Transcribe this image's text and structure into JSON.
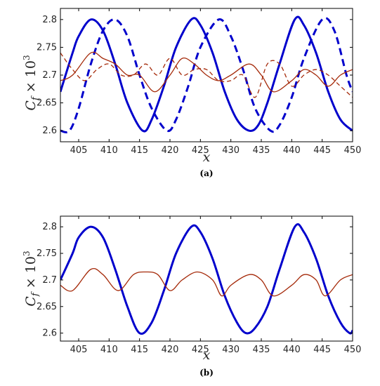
{
  "chart_data": [
    {
      "type": "line",
      "panel_label": "(a)",
      "xlabel": "x",
      "ylabel": "C_f × 10^3",
      "xlim": [
        402,
        450
      ],
      "ylim": [
        2.58,
        2.82
      ],
      "xticks": [
        405,
        410,
        415,
        420,
        425,
        430,
        435,
        440,
        445,
        450
      ],
      "yticks": [
        2.6,
        2.65,
        2.7,
        2.75,
        2.8
      ],
      "grid": false,
      "series": [
        {
          "color": "#0000cc",
          "style": "solid",
          "width": 3,
          "x": [
            402,
            404,
            405,
            407,
            409,
            411,
            413,
            415.5,
            417,
            419,
            421,
            423.5,
            425,
            427,
            429,
            431,
            433,
            434.5,
            436,
            438,
            440.5,
            442,
            444,
            446,
            448,
            450
          ],
          "y": [
            2.67,
            2.74,
            2.77,
            2.8,
            2.78,
            2.72,
            2.65,
            2.6,
            2.62,
            2.68,
            2.75,
            2.8,
            2.79,
            2.74,
            2.67,
            2.62,
            2.6,
            2.61,
            2.65,
            2.72,
            2.8,
            2.79,
            2.74,
            2.67,
            2.62,
            2.6
          ]
        },
        {
          "color": "#0000cc",
          "style": "dashed",
          "width": 3,
          "x": [
            402,
            403.5,
            405,
            407,
            409,
            411,
            413,
            415,
            417,
            419.5,
            421,
            423,
            425,
            428,
            430,
            432,
            434,
            436.5,
            438,
            440,
            442,
            445,
            447,
            449,
            450
          ],
          "y": [
            2.6,
            2.6,
            2.64,
            2.72,
            2.78,
            2.8,
            2.77,
            2.7,
            2.64,
            2.6,
            2.62,
            2.68,
            2.75,
            2.8,
            2.77,
            2.71,
            2.64,
            2.6,
            2.61,
            2.66,
            2.73,
            2.8,
            2.78,
            2.7,
            2.67
          ]
        },
        {
          "color": "#a52a0a",
          "style": "solid",
          "width": 1.3,
          "x": [
            402,
            404,
            407,
            409,
            411,
            413,
            415,
            417.5,
            420,
            422,
            424,
            426,
            428,
            430,
            433,
            435,
            437,
            440,
            442,
            444,
            446,
            448,
            450
          ],
          "y": [
            2.69,
            2.7,
            2.74,
            2.73,
            2.72,
            2.7,
            2.7,
            2.67,
            2.7,
            2.73,
            2.72,
            2.7,
            2.69,
            2.7,
            2.72,
            2.7,
            2.67,
            2.69,
            2.71,
            2.7,
            2.68,
            2.7,
            2.71
          ]
        },
        {
          "color": "#a52a0a",
          "style": "dashed",
          "width": 1.3,
          "x": [
            402,
            404,
            406,
            408,
            410,
            412,
            414,
            416,
            418,
            420,
            422,
            424,
            426,
            428,
            430,
            432,
            434,
            436,
            438,
            440,
            442,
            444,
            446,
            448,
            450
          ],
          "y": [
            2.74,
            2.71,
            2.69,
            2.71,
            2.72,
            2.7,
            2.7,
            2.72,
            2.7,
            2.73,
            2.7,
            2.71,
            2.71,
            2.69,
            2.69,
            2.7,
            2.66,
            2.72,
            2.72,
            2.68,
            2.7,
            2.71,
            2.7,
            2.68,
            2.66
          ]
        }
      ]
    },
    {
      "type": "line",
      "panel_label": "(b)",
      "xlabel": "x",
      "ylabel": "C_f × 10^3",
      "xlim": [
        402,
        450
      ],
      "ylim": [
        2.585,
        2.82
      ],
      "xticks": [
        405,
        410,
        415,
        420,
        425,
        430,
        435,
        440,
        445,
        450
      ],
      "yticks": [
        2.6,
        2.65,
        2.7,
        2.75,
        2.8
      ],
      "grid": false,
      "series": [
        {
          "color": "#0000cc",
          "style": "solid",
          "width": 3,
          "x": [
            402,
            404,
            405,
            407,
            409,
            411,
            413,
            415,
            417,
            419,
            421,
            423.5,
            425,
            427,
            429,
            431,
            432.5,
            434,
            436,
            438,
            440.5,
            442,
            444,
            446,
            448,
            449.5,
            450
          ],
          "y": [
            2.7,
            2.75,
            2.78,
            2.8,
            2.78,
            2.72,
            2.65,
            2.6,
            2.62,
            2.68,
            2.75,
            2.8,
            2.79,
            2.74,
            2.67,
            2.62,
            2.6,
            2.61,
            2.65,
            2.72,
            2.8,
            2.79,
            2.74,
            2.67,
            2.62,
            2.6,
            2.605
          ]
        },
        {
          "color": "#a52a0a",
          "style": "solid",
          "width": 1.3,
          "x": [
            402,
            404,
            407,
            409,
            411.5,
            414,
            416,
            418,
            420,
            422,
            424.5,
            427,
            428.5,
            430,
            433,
            435,
            437,
            440,
            442,
            444,
            445.5,
            448,
            450
          ],
          "y": [
            2.69,
            2.68,
            2.72,
            2.71,
            2.68,
            2.71,
            2.715,
            2.71,
            2.68,
            2.7,
            2.715,
            2.7,
            2.67,
            2.69,
            2.71,
            2.7,
            2.67,
            2.69,
            2.71,
            2.7,
            2.67,
            2.7,
            2.71
          ]
        }
      ]
    }
  ]
}
